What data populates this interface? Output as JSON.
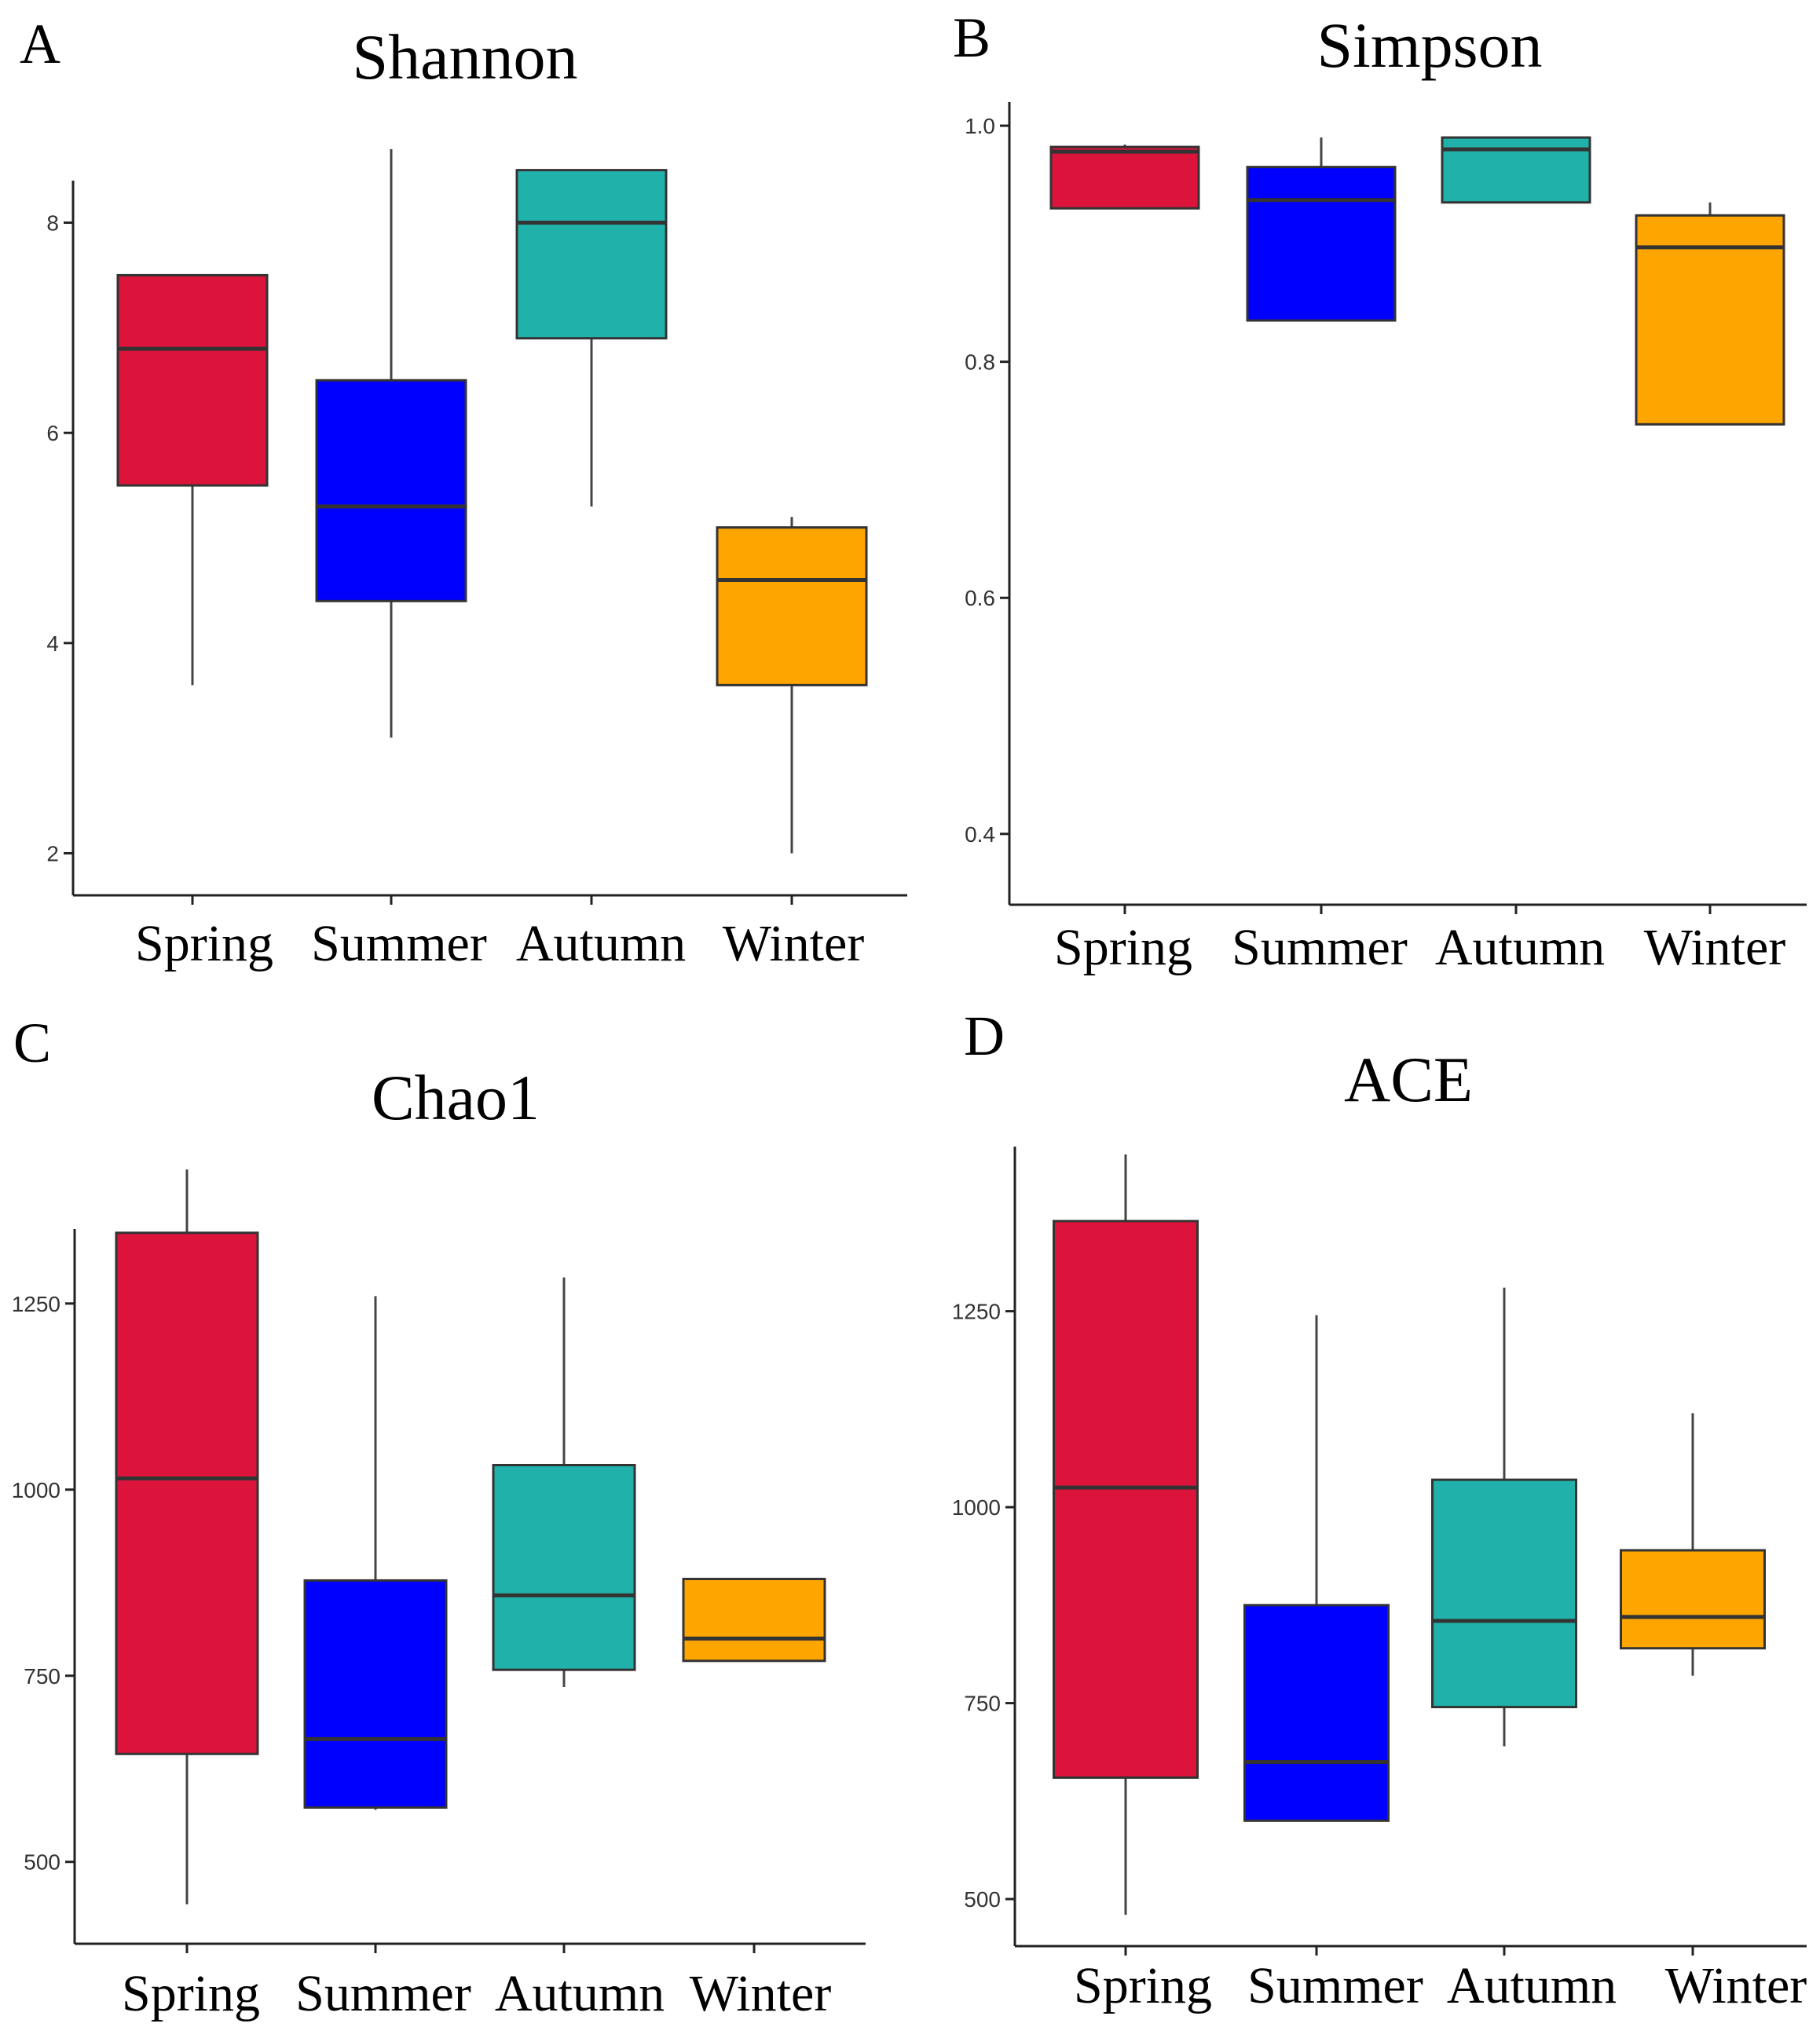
{
  "chart_data": [
    {
      "panel": "A",
      "type": "box",
      "title": "Shannon",
      "categories": [
        "Spring",
        "Summer",
        "Autumn",
        "Winter"
      ],
      "colors": [
        "#dc143c",
        "#0000ff",
        "#20b2aa",
        "#ffa500"
      ],
      "yticks": [
        2,
        4,
        6,
        8
      ],
      "ylim": [
        1.6,
        8.4
      ],
      "boxes": [
        {
          "min": 3.6,
          "q1": 5.5,
          "median": 6.8,
          "q3": 7.5,
          "max": 7.5
        },
        {
          "min": 3.1,
          "q1": 4.4,
          "median": 5.3,
          "q3": 6.5,
          "max": 8.7
        },
        {
          "min": 5.3,
          "q1": 6.9,
          "median": 8.0,
          "q3": 8.5,
          "max": 8.5
        },
        {
          "min": 2.0,
          "q1": 3.6,
          "median": 4.6,
          "q3": 5.1,
          "max": 5.2
        }
      ]
    },
    {
      "panel": "B",
      "type": "box",
      "title": "Simpson",
      "categories": [
        "Spring",
        "Summer",
        "Autumn",
        "Winter"
      ],
      "colors": [
        "#dc143c",
        "#0000ff",
        "#20b2aa",
        "#ffa500"
      ],
      "yticks": [
        0.4,
        0.6,
        0.8,
        1.0
      ],
      "ylim": [
        0.34,
        1.02
      ],
      "boxes": [
        {
          "min": 0.93,
          "q1": 0.93,
          "median": 0.978,
          "q3": 0.982,
          "max": 0.984
        },
        {
          "min": 0.835,
          "q1": 0.835,
          "median": 0.937,
          "q3": 0.965,
          "max": 0.99
        },
        {
          "min": 0.935,
          "q1": 0.935,
          "median": 0.98,
          "q3": 0.99,
          "max": 0.99
        },
        {
          "min": 0.747,
          "q1": 0.747,
          "median": 0.897,
          "q3": 0.924,
          "max": 0.935
        }
      ]
    },
    {
      "panel": "C",
      "type": "box",
      "title": "Chao1",
      "categories": [
        "Spring",
        "Summer",
        "Autumn",
        "Winter"
      ],
      "colors": [
        "#dc143c",
        "#0000ff",
        "#20b2aa",
        "#ffa500"
      ],
      "yticks": [
        500,
        750,
        1000,
        1250
      ],
      "ylim": [
        390,
        1350
      ],
      "boxes": [
        {
          "min": 443,
          "q1": 645,
          "median": 1015,
          "q3": 1345,
          "max": 1430
        },
        {
          "min": 570,
          "q1": 573,
          "median": 665,
          "q3": 878,
          "max": 1260
        },
        {
          "min": 735,
          "q1": 758,
          "median": 858,
          "q3": 1033,
          "max": 1285
        },
        {
          "min": 770,
          "q1": 770,
          "median": 800,
          "q3": 880,
          "max": 880
        }
      ]
    },
    {
      "panel": "D",
      "type": "box",
      "title": "ACE",
      "categories": [
        "Spring",
        "Summer",
        "Autumn",
        "Winter"
      ],
      "colors": [
        "#dc143c",
        "#0000ff",
        "#20b2aa",
        "#ffa500"
      ],
      "yticks": [
        500,
        750,
        1000,
        1250
      ],
      "ylim": [
        440,
        1460
      ],
      "boxes": [
        {
          "min": 480,
          "q1": 655,
          "median": 1025,
          "q3": 1365,
          "max": 1450
        },
        {
          "min": 600,
          "q1": 600,
          "median": 675,
          "q3": 875,
          "max": 1245
        },
        {
          "min": 695,
          "q1": 745,
          "median": 855,
          "q3": 1035,
          "max": 1280
        },
        {
          "min": 785,
          "q1": 820,
          "median": 860,
          "q3": 945,
          "max": 1120
        }
      ]
    }
  ]
}
